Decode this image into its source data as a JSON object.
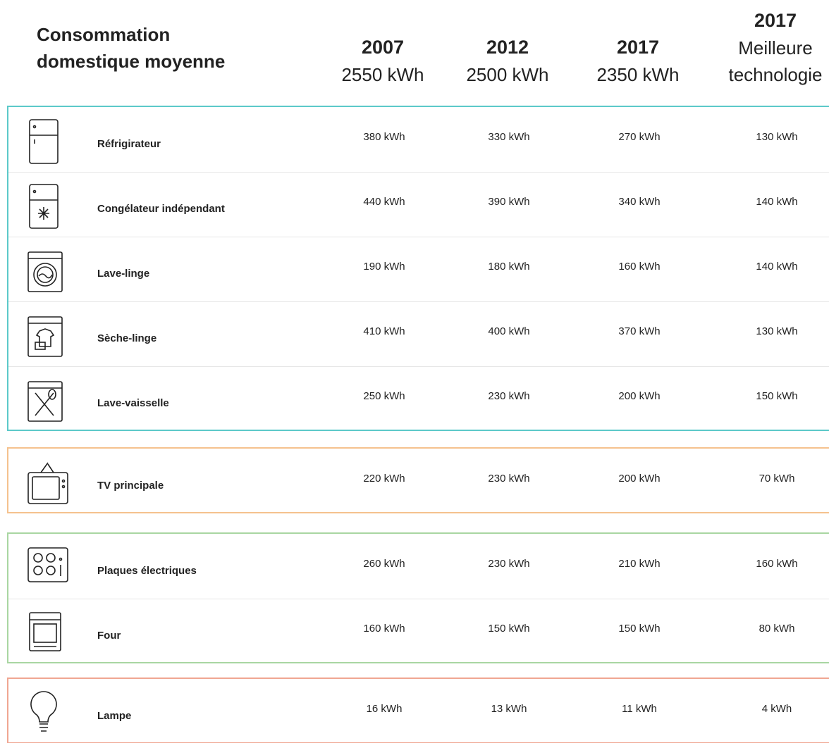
{
  "header": {
    "title": "Consommation domestique moyenne",
    "columns": [
      {
        "year": "2007",
        "total": "2550 kWh"
      },
      {
        "year": "2012",
        "total": "2500 kWh"
      },
      {
        "year": "2017",
        "total": "2350 kWh"
      },
      {
        "year": "2017",
        "total": "Meilleure technologie"
      }
    ]
  },
  "groups": [
    {
      "color": "#5cc9c9",
      "rows": [
        {
          "label": "Réfrigirateur",
          "values": [
            "380 kWh",
            "330 kWh",
            "270 kWh",
            "130 kWh"
          ]
        },
        {
          "label": "Congélateur indépendant",
          "values": [
            "440 kWh",
            "390 kWh",
            "340 kWh",
            "140 kWh"
          ]
        },
        {
          "label": "Lave-linge",
          "values": [
            "190 kWh",
            "180 kWh",
            "160 kWh",
            "140 kWh"
          ]
        },
        {
          "label": "Sèche-linge",
          "values": [
            "410 kWh",
            "400 kWh",
            "370 kWh",
            "130 kWh"
          ]
        },
        {
          "label": "Lave-vaisselle",
          "values": [
            "250 kWh",
            "230 kWh",
            "200 kWh",
            "150 kWh"
          ]
        }
      ]
    },
    {
      "color": "#f5c28e",
      "rows": [
        {
          "label": "TV principale",
          "values": [
            "220 kWh",
            "230 kWh",
            "200 kWh",
            "70 kWh"
          ]
        }
      ]
    },
    {
      "color": "#a9d6a2",
      "rows": [
        {
          "label": "Plaques électriques",
          "values": [
            "260 kWh",
            "230 kWh",
            "210 kWh",
            "160 kWh"
          ]
        },
        {
          "label": "Four",
          "values": [
            "160 kWh",
            "150 kWh",
            "150 kWh",
            "80 kWh"
          ]
        }
      ]
    },
    {
      "color": "#f0a692",
      "rows": [
        {
          "label": "Lampe",
          "values": [
            "16 kWh",
            "13 kWh",
            "11 kWh",
            "4 kWh"
          ]
        }
      ]
    }
  ]
}
